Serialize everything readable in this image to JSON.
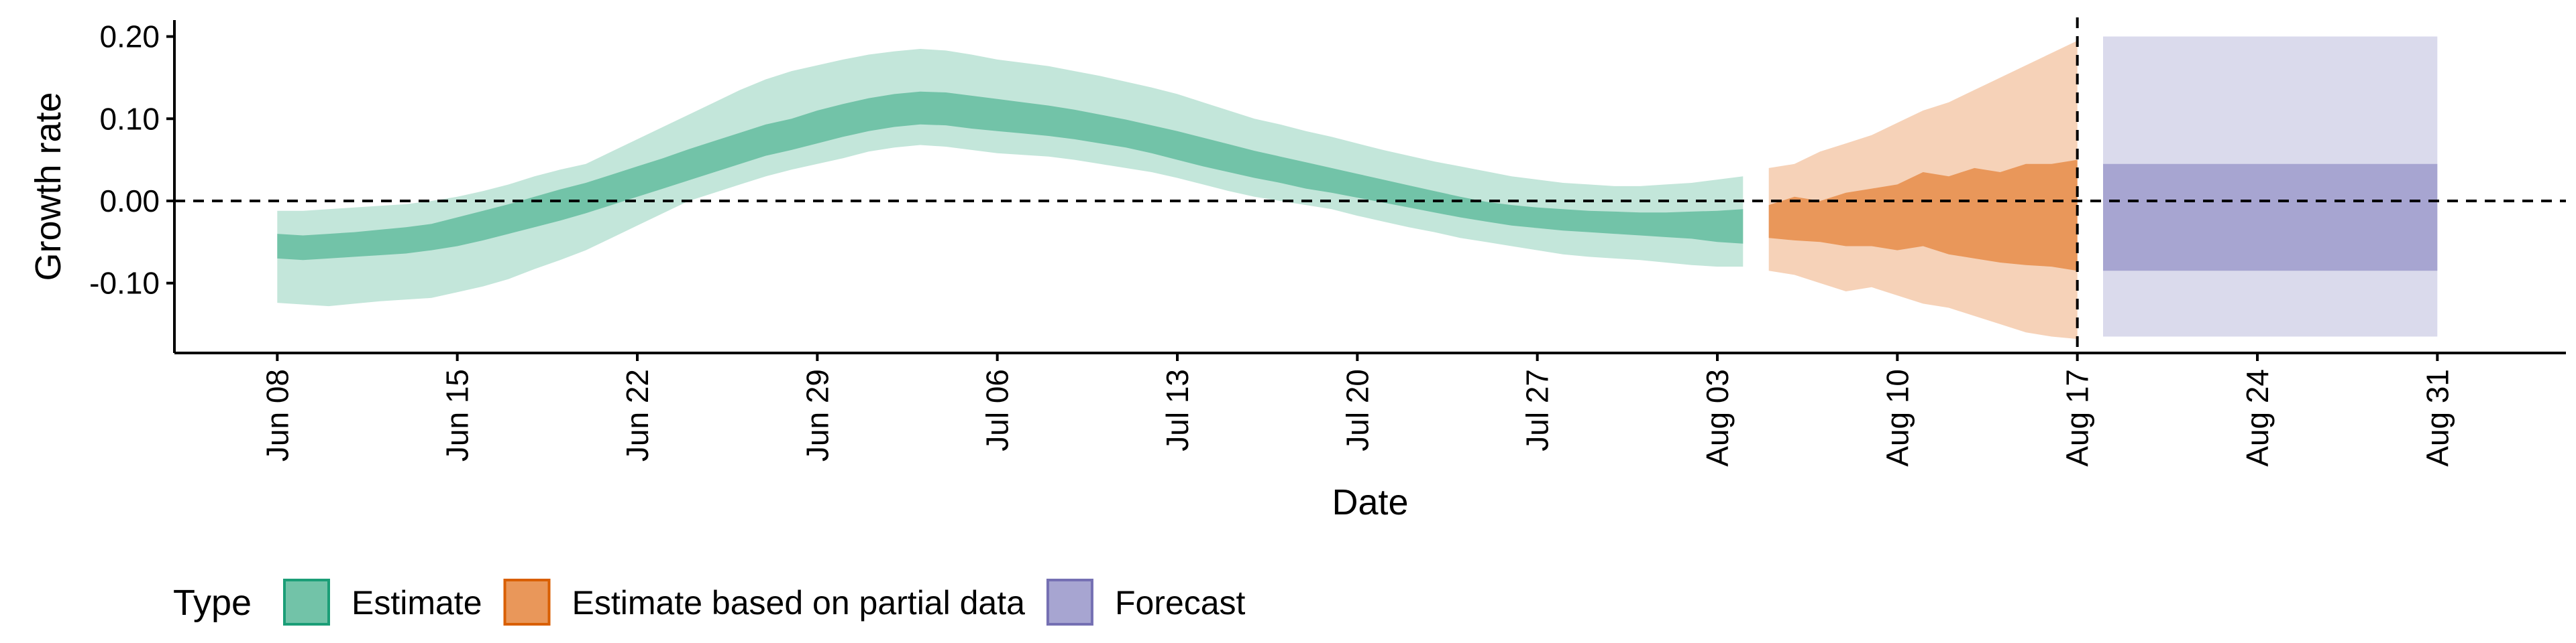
{
  "chart_data": {
    "type": "area",
    "xlabel": "Date",
    "ylabel": "Growth rate",
    "ylim": [
      -0.185,
      0.22
    ],
    "xlim": [
      "2020-06-04",
      "2020-09-05"
    ],
    "x_ticks": [
      "2020-06-08",
      "2020-06-15",
      "2020-06-22",
      "2020-06-29",
      "2020-07-06",
      "2020-07-13",
      "2020-07-20",
      "2020-07-27",
      "2020-08-03",
      "2020-08-10",
      "2020-08-17",
      "2020-08-24",
      "2020-08-31"
    ],
    "x_tick_labels": [
      "Jun 08",
      "Jun 15",
      "Jun 22",
      "Jun 29",
      "Jul 06",
      "Jul 13",
      "Jul 20",
      "Jul 27",
      "Aug 03",
      "Aug 10",
      "Aug 17",
      "Aug 24",
      "Aug 31"
    ],
    "y_ticks": [
      -0.1,
      0.0,
      0.1,
      0.2
    ],
    "y_tick_labels": [
      "-0.10",
      "0.00",
      "0.10",
      "0.20"
    ],
    "hline": 0.0,
    "vline": "2020-08-17",
    "legend": {
      "title": "Type",
      "position": "bottom-left",
      "entries": [
        "Estimate",
        "Estimate based on partial data",
        "Forecast"
      ]
    },
    "colors": {
      "estimate_inner": "#72c3a8",
      "estimate_outer": "#c3e6da",
      "estimate_border": "#1b9e77",
      "partial_inner": "#e9975a",
      "partial_outer": "#f6d2b8",
      "partial_border": "#d95f02",
      "forecast_inner": "#a7a5d1",
      "forecast_outer": "#dadaec",
      "forecast_border": "#7570b3"
    },
    "series": [
      {
        "name": "Estimate",
        "x": [
          "2020-06-08",
          "2020-06-09",
          "2020-06-10",
          "2020-06-11",
          "2020-06-12",
          "2020-06-13",
          "2020-06-14",
          "2020-06-15",
          "2020-06-16",
          "2020-06-17",
          "2020-06-18",
          "2020-06-19",
          "2020-06-20",
          "2020-06-21",
          "2020-06-22",
          "2020-06-23",
          "2020-06-24",
          "2020-06-25",
          "2020-06-26",
          "2020-06-27",
          "2020-06-28",
          "2020-06-29",
          "2020-06-30",
          "2020-07-01",
          "2020-07-02",
          "2020-07-03",
          "2020-07-04",
          "2020-07-05",
          "2020-07-06",
          "2020-07-07",
          "2020-07-08",
          "2020-07-09",
          "2020-07-10",
          "2020-07-11",
          "2020-07-12",
          "2020-07-13",
          "2020-07-14",
          "2020-07-15",
          "2020-07-16",
          "2020-07-17",
          "2020-07-18",
          "2020-07-19",
          "2020-07-20",
          "2020-07-21",
          "2020-07-22",
          "2020-07-23",
          "2020-07-24",
          "2020-07-25",
          "2020-07-26",
          "2020-07-27",
          "2020-07-28",
          "2020-07-29",
          "2020-07-30",
          "2020-07-31",
          "2020-08-01",
          "2020-08-02",
          "2020-08-03",
          "2020-08-04"
        ],
        "lower_90": [
          -0.124,
          -0.126,
          -0.128,
          -0.125,
          -0.122,
          -0.12,
          -0.118,
          -0.111,
          -0.104,
          -0.095,
          -0.083,
          -0.072,
          -0.06,
          -0.045,
          -0.03,
          -0.015,
          0.0,
          0.01,
          0.02,
          0.03,
          0.038,
          0.045,
          0.052,
          0.06,
          0.065,
          0.068,
          0.066,
          0.062,
          0.058,
          0.056,
          0.054,
          0.05,
          0.045,
          0.04,
          0.035,
          0.028,
          0.02,
          0.012,
          0.005,
          0.0,
          -0.005,
          -0.01,
          -0.018,
          -0.025,
          -0.032,
          -0.038,
          -0.045,
          -0.05,
          -0.055,
          -0.06,
          -0.065,
          -0.068,
          -0.07,
          -0.072,
          -0.075,
          -0.078,
          -0.08,
          -0.08
        ],
        "upper_90": [
          -0.012,
          -0.012,
          -0.01,
          -0.008,
          -0.006,
          -0.004,
          0.0,
          0.005,
          0.012,
          0.02,
          0.03,
          0.038,
          0.045,
          0.06,
          0.075,
          0.09,
          0.105,
          0.12,
          0.135,
          0.148,
          0.158,
          0.165,
          0.172,
          0.178,
          0.182,
          0.185,
          0.183,
          0.178,
          0.172,
          0.168,
          0.164,
          0.158,
          0.152,
          0.145,
          0.138,
          0.13,
          0.12,
          0.11,
          0.1,
          0.093,
          0.085,
          0.078,
          0.07,
          0.062,
          0.055,
          0.048,
          0.042,
          0.036,
          0.03,
          0.026,
          0.022,
          0.02,
          0.018,
          0.018,
          0.02,
          0.022,
          0.026,
          0.03
        ],
        "lower_50": [
          -0.07,
          -0.072,
          -0.07,
          -0.068,
          -0.066,
          -0.064,
          -0.06,
          -0.055,
          -0.048,
          -0.04,
          -0.032,
          -0.024,
          -0.015,
          -0.005,
          0.005,
          0.015,
          0.025,
          0.035,
          0.045,
          0.055,
          0.062,
          0.07,
          0.078,
          0.085,
          0.09,
          0.093,
          0.092,
          0.088,
          0.085,
          0.082,
          0.079,
          0.075,
          0.07,
          0.065,
          0.058,
          0.05,
          0.042,
          0.035,
          0.028,
          0.022,
          0.015,
          0.01,
          0.004,
          -0.002,
          -0.008,
          -0.014,
          -0.02,
          -0.025,
          -0.03,
          -0.033,
          -0.036,
          -0.038,
          -0.04,
          -0.042,
          -0.044,
          -0.046,
          -0.05,
          -0.052
        ],
        "upper_50": [
          -0.04,
          -0.042,
          -0.04,
          -0.038,
          -0.035,
          -0.032,
          -0.028,
          -0.02,
          -0.012,
          -0.004,
          0.005,
          0.014,
          0.022,
          0.032,
          0.042,
          0.052,
          0.063,
          0.073,
          0.083,
          0.093,
          0.1,
          0.11,
          0.118,
          0.125,
          0.13,
          0.133,
          0.132,
          0.128,
          0.124,
          0.12,
          0.116,
          0.111,
          0.105,
          0.099,
          0.092,
          0.085,
          0.077,
          0.069,
          0.061,
          0.054,
          0.047,
          0.04,
          0.033,
          0.026,
          0.019,
          0.012,
          0.005,
          -0.001,
          -0.005,
          -0.008,
          -0.01,
          -0.012,
          -0.013,
          -0.014,
          -0.014,
          -0.013,
          -0.012,
          -0.01
        ]
      },
      {
        "name": "Estimate based on partial data",
        "x": [
          "2020-08-05",
          "2020-08-06",
          "2020-08-07",
          "2020-08-08",
          "2020-08-09",
          "2020-08-10",
          "2020-08-11",
          "2020-08-12",
          "2020-08-13",
          "2020-08-14",
          "2020-08-15",
          "2020-08-16",
          "2020-08-17"
        ],
        "lower_90": [
          -0.085,
          -0.09,
          -0.1,
          -0.11,
          -0.105,
          -0.115,
          -0.125,
          -0.13,
          -0.14,
          -0.15,
          -0.16,
          -0.165,
          -0.168
        ],
        "upper_90": [
          0.04,
          0.045,
          0.06,
          0.07,
          0.08,
          0.095,
          0.11,
          0.12,
          0.135,
          0.15,
          0.165,
          0.18,
          0.195
        ],
        "lower_50": [
          -0.045,
          -0.048,
          -0.05,
          -0.055,
          -0.055,
          -0.06,
          -0.055,
          -0.065,
          -0.07,
          -0.075,
          -0.078,
          -0.08,
          -0.085
        ],
        "upper_50": [
          -0.005,
          0.005,
          0.0,
          0.01,
          0.015,
          0.02,
          0.035,
          0.03,
          0.04,
          0.035,
          0.045,
          0.045,
          0.05
        ]
      },
      {
        "name": "Forecast",
        "x": [
          "2020-08-18",
          "2020-08-31"
        ],
        "lower_90": [
          -0.165,
          -0.165
        ],
        "upper_90": [
          0.2,
          0.2
        ],
        "lower_50": [
          -0.085,
          -0.085
        ],
        "upper_50": [
          0.045,
          0.045
        ]
      }
    ]
  }
}
